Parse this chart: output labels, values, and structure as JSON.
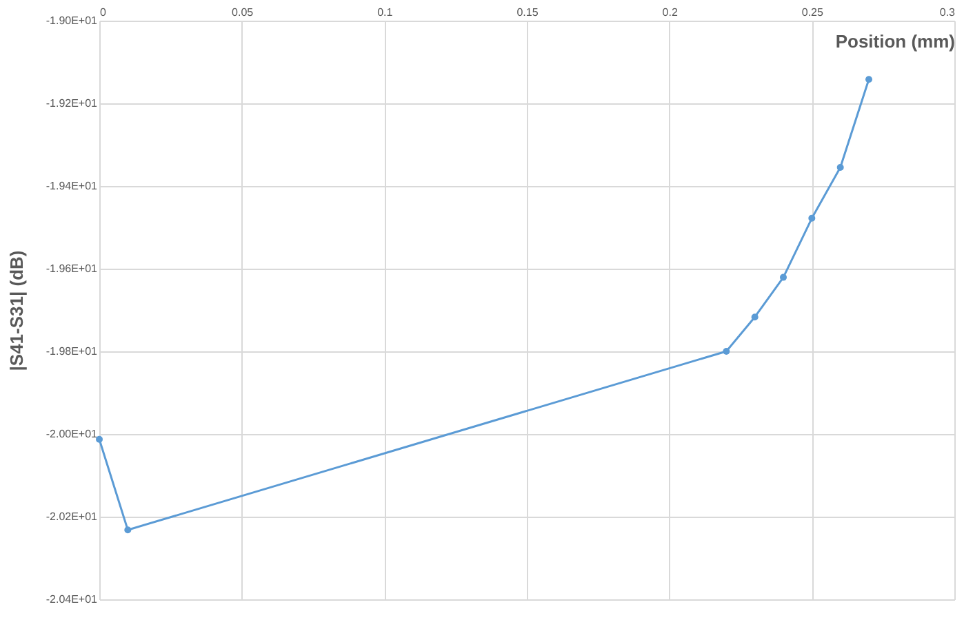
{
  "chart_data": {
    "type": "line",
    "xlabel": "Position (mm)",
    "ylabel": "|S41-S31| (dB)",
    "x": [
      0,
      0.01,
      0.22,
      0.23,
      0.24,
      0.25,
      0.26,
      0.27
    ],
    "series": [
      {
        "color": "#5b9bd5",
        "values": [
          -20.013,
          -20.232,
          -19.8,
          -19.717,
          -19.621,
          -19.478,
          -19.355,
          -19.142
        ]
      }
    ],
    "xlim": [
      0,
      0.3
    ],
    "xticks": [
      0,
      0.05,
      0.1,
      0.15,
      0.2,
      0.25,
      0.3
    ],
    "ylim": [
      -20.4,
      -19.0
    ],
    "yticks": [
      {
        "value": -20.4,
        "label": "-2.04E+01"
      },
      {
        "value": -20.2,
        "label": "-2.02E+01"
      },
      {
        "value": -20.0,
        "label": "-2.00E+01"
      },
      {
        "value": -19.8,
        "label": "-1.98E+01"
      },
      {
        "value": -19.6,
        "label": "-1.96E+01"
      },
      {
        "value": -19.4,
        "label": "-1.94E+01"
      },
      {
        "value": -19.2,
        "label": "-1.92E+01"
      },
      {
        "value": -19.0,
        "label": "-1.90E+01"
      }
    ],
    "grid": true,
    "marker": "circle",
    "line_style": "solid"
  }
}
